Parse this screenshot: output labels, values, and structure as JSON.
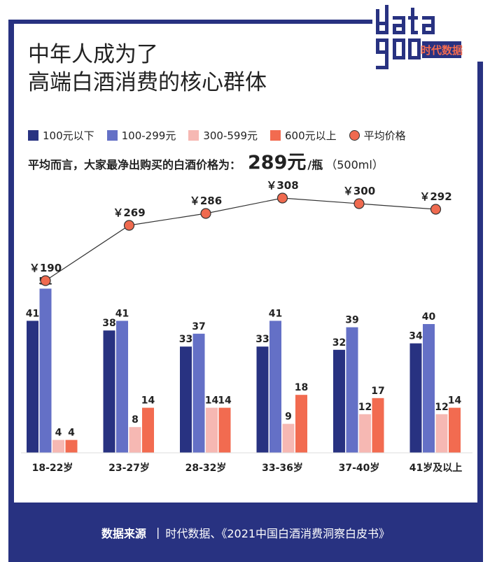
{
  "colors": {
    "navy": "#283281",
    "blue": "#6470c6",
    "pink": "#f6b8b3",
    "orange": "#f26b50",
    "dot": "#ef6a4f",
    "line": "#333333"
  },
  "title": {
    "line1": "中年人成为了",
    "line2": "高端白酒消费的核心群体"
  },
  "logo": {
    "text": "data goo",
    "tagline": "时代数据"
  },
  "legend": [
    {
      "label": "100元以下",
      "color": "#283281",
      "shape": "square"
    },
    {
      "label": "100-299元",
      "color": "#6470c6",
      "shape": "square"
    },
    {
      "label": "300-599元",
      "color": "#f6b8b3",
      "shape": "square"
    },
    {
      "label": "600元以上",
      "color": "#f26b50",
      "shape": "square"
    },
    {
      "label": "平均价格",
      "color": "#ef6a4f",
      "shape": "circle"
    }
  ],
  "subtitle": {
    "text": "平均而言，大家最净出购买的白酒价格为：",
    "value": "289元",
    "unit": "/瓶",
    "volume": "（500ml）"
  },
  "chart_data": {
    "type": "bar",
    "categories": [
      "18-22岁",
      "23-27岁",
      "28-32岁",
      "33-36岁",
      "37-40岁",
      "41岁及以上"
    ],
    "series": [
      {
        "name": "100元以下",
        "values": [
          41,
          38,
          33,
          33,
          32,
          34
        ]
      },
      {
        "name": "100-299元",
        "values": [
          51,
          41,
          37,
          41,
          39,
          40
        ]
      },
      {
        "name": "300-599元",
        "values": [
          4,
          8,
          14,
          9,
          12,
          12
        ]
      },
      {
        "name": "600元以上",
        "values": [
          4,
          14,
          14,
          18,
          17,
          14
        ]
      }
    ],
    "line": {
      "name": "平均价格",
      "values": [
        190,
        269,
        286,
        308,
        300,
        292
      ],
      "labels": [
        "￥190",
        "￥269",
        "￥286",
        "￥308",
        "￥300",
        "￥292"
      ]
    },
    "grid": false
  },
  "footer": {
    "label": "数据来源",
    "separator": "|",
    "text": "时代数据、《2021中国白酒消费洞察白皮书》"
  }
}
